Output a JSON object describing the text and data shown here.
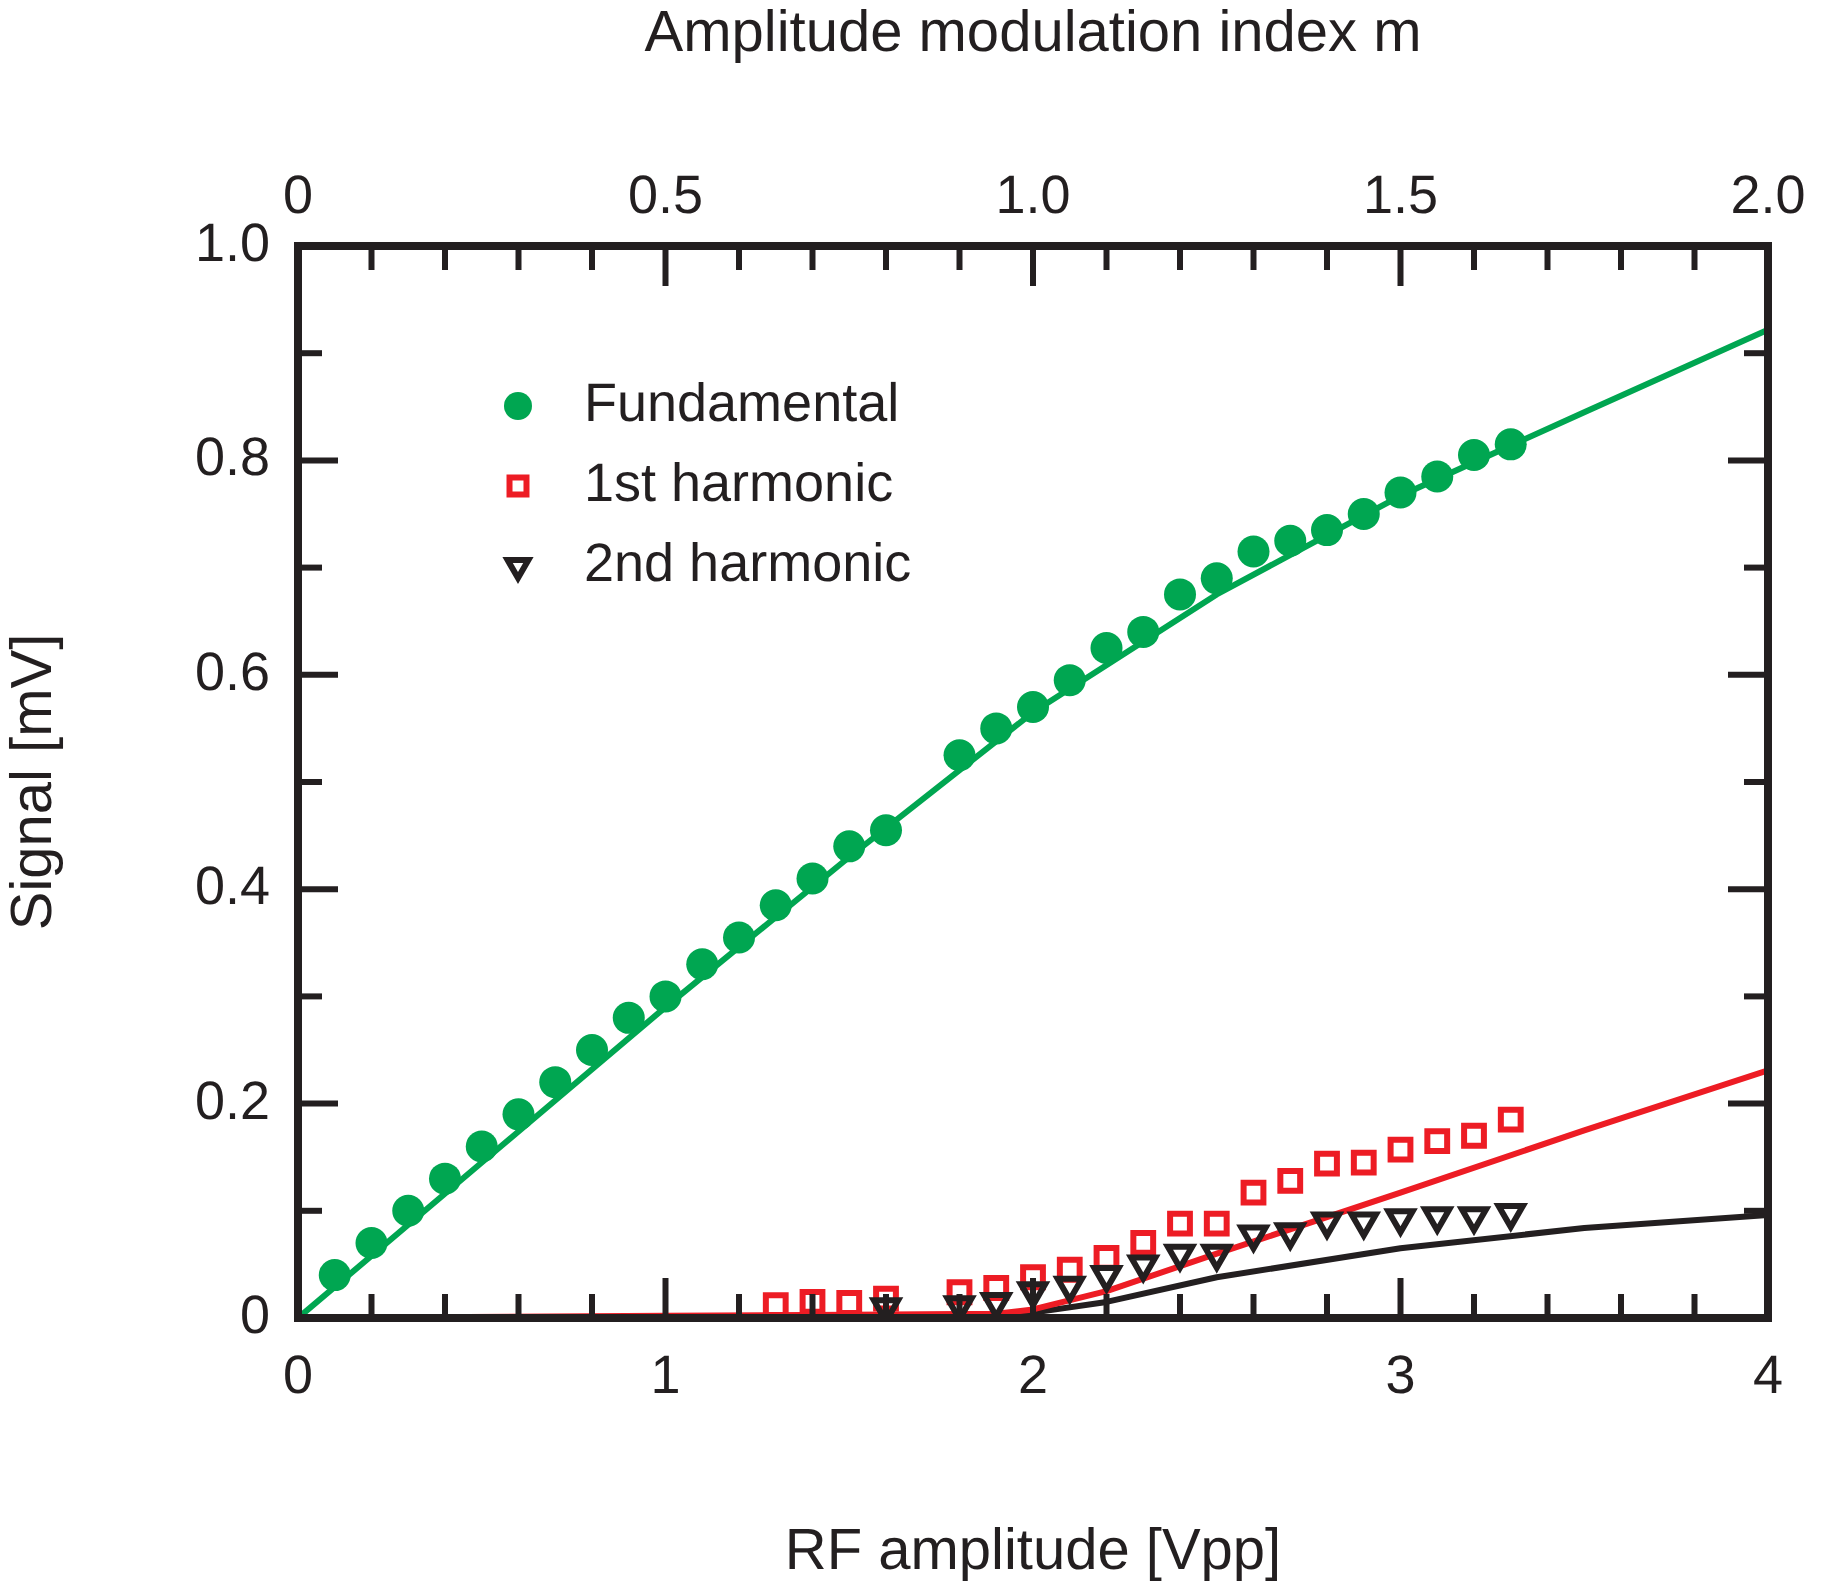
{
  "chart_data": {
    "type": "scatter",
    "xlabel": "RF amplitude [Vpp]",
    "ylabel": "Signal [mV]",
    "x2label": "Amplitude modulation index m",
    "xlim": [
      0,
      4
    ],
    "ylim": [
      0,
      1
    ],
    "x2lim": [
      0,
      2
    ],
    "xticks": [
      0,
      {
        "value": 0.2,
        "label": null
      },
      {
        "value": 0.4,
        "label": null
      },
      {
        "value": 0.6,
        "label": null
      },
      {
        "value": 0.8,
        "label": null
      },
      1,
      {
        "value": 1.2,
        "label": null
      },
      {
        "value": 1.4,
        "label": null
      },
      {
        "value": 1.6,
        "label": null
      },
      {
        "value": 1.8,
        "label": null
      },
      2,
      {
        "value": 2.2,
        "label": null
      },
      {
        "value": 2.4,
        "label": null
      },
      {
        "value": 2.6,
        "label": null
      },
      {
        "value": 2.8,
        "label": null
      },
      3,
      {
        "value": 3.2,
        "label": null
      },
      {
        "value": 3.4,
        "label": null
      },
      {
        "value": 3.6,
        "label": null
      },
      {
        "value": 3.8,
        "label": null
      },
      4
    ],
    "x2ticks": [
      0,
      {
        "value": 0.1,
        "label": null
      },
      {
        "value": 0.2,
        "label": null
      },
      {
        "value": 0.3,
        "label": null
      },
      {
        "value": 0.4,
        "label": null
      },
      0.5,
      {
        "value": 0.6,
        "label": null
      },
      {
        "value": 0.7,
        "label": null
      },
      {
        "value": 0.8,
        "label": null
      },
      {
        "value": 0.9,
        "label": null
      },
      {
        "value": 1,
        "label": "1.0"
      },
      {
        "value": 1.1,
        "label": null
      },
      {
        "value": 1.2,
        "label": null
      },
      {
        "value": 1.3,
        "label": null
      },
      {
        "value": 1.4,
        "label": null
      },
      1.5,
      {
        "value": 1.6,
        "label": null
      },
      {
        "value": 1.7,
        "label": null
      },
      {
        "value": 1.8,
        "label": null
      },
      {
        "value": 1.9,
        "label": null
      },
      {
        "value": 2,
        "label": "2.0"
      }
    ],
    "yticks": [
      0,
      {
        "value": 0.1,
        "label": null
      },
      0.2,
      {
        "value": 0.3,
        "label": null
      },
      0.4,
      {
        "value": 0.5,
        "label": null
      },
      0.6,
      {
        "value": 0.7,
        "label": null
      },
      0.8,
      {
        "value": 0.9,
        "label": null
      },
      {
        "value": 1,
        "label": "1.0"
      }
    ],
    "grid": false,
    "legend": "top left",
    "series": [
      {
        "name": "Fundamental",
        "marker": "circle",
        "color": "#00a651",
        "x": [
          0.1,
          0.2,
          0.3,
          0.4,
          0.5,
          0.6,
          0.7,
          0.8,
          0.9,
          1.0,
          1.1,
          1.2,
          1.3,
          1.4,
          1.5,
          1.6,
          1.8,
          1.9,
          2.0,
          2.1,
          2.2,
          2.3,
          2.4,
          2.5,
          2.6,
          2.7,
          2.8,
          2.9,
          3.0,
          3.1,
          3.2,
          3.3
        ],
        "values": [
          0.04,
          0.07,
          0.1,
          0.13,
          0.16,
          0.19,
          0.22,
          0.25,
          0.28,
          0.3,
          0.33,
          0.355,
          0.385,
          0.41,
          0.44,
          0.455,
          0.525,
          0.55,
          0.57,
          0.595,
          0.625,
          0.64,
          0.675,
          0.69,
          0.715,
          0.725,
          0.735,
          0.75,
          0.77,
          0.785,
          0.805,
          0.815
        ]
      },
      {
        "name": "1st harmonic",
        "marker": "square",
        "color": "#ed1c24",
        "x": [
          1.3,
          1.4,
          1.5,
          1.6,
          1.8,
          1.9,
          2.0,
          2.1,
          2.2,
          2.3,
          2.4,
          2.5,
          2.6,
          2.7,
          2.8,
          2.9,
          3.0,
          3.1,
          3.2,
          3.3
        ],
        "values": [
          0.012,
          0.015,
          0.014,
          0.018,
          0.024,
          0.028,
          0.038,
          0.045,
          0.056,
          0.07,
          0.088,
          0.088,
          0.117,
          0.128,
          0.144,
          0.145,
          0.157,
          0.165,
          0.17,
          0.185
        ]
      },
      {
        "name": "2nd harmonic",
        "marker": "triangle",
        "color": "#231f20",
        "x": [
          1.6,
          1.8,
          1.9,
          2.0,
          2.1,
          2.2,
          2.3,
          2.4,
          2.5,
          2.6,
          2.7,
          2.8,
          2.9,
          3.0,
          3.1,
          3.2,
          3.3
        ],
        "values": [
          0.01,
          0.012,
          0.015,
          0.025,
          0.03,
          0.04,
          0.05,
          0.06,
          0.06,
          0.078,
          0.08,
          0.09,
          0.09,
          0.093,
          0.095,
          0.095,
          0.098
        ]
      },
      {
        "type": "line",
        "marker": "none",
        "color": "#00a651",
        "x": [
          0,
          0.5,
          1,
          1.5,
          2,
          2.5,
          3,
          3.5,
          4
        ],
        "values": [
          0,
          0.145,
          0.29,
          0.43,
          0.565,
          0.675,
          0.767,
          0.845,
          0.922
        ]
      },
      {
        "type": "line",
        "marker": "none",
        "color": "#ed1c24",
        "x": [
          0,
          1,
          1.5,
          1.9,
          2.0,
          2.2,
          2.5,
          3,
          3.5,
          4
        ],
        "values": [
          0,
          0.002,
          0.003,
          0.004,
          0.008,
          0.025,
          0.06,
          0.117,
          0.175,
          0.231
        ]
      },
      {
        "type": "line",
        "marker": "none",
        "color": "#231f20",
        "x": [
          0,
          1,
          1.5,
          1.9,
          2.0,
          2.2,
          2.5,
          3,
          3.5,
          4
        ],
        "values": [
          0,
          0.001,
          0.002,
          0.003,
          0.005,
          0.015,
          0.038,
          0.065,
          0.084,
          0.096
        ]
      }
    ]
  }
}
